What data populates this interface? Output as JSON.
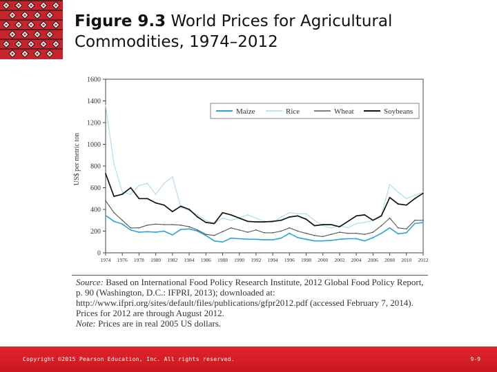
{
  "slide": {
    "title_bold": "Figure 9.3",
    "title_rest": " World Prices for Agricultural Commodities, 1974–2012",
    "source_label": "Source:",
    "source_text": " Based on International Food Policy Research Institute, 2012 Global Food Policy Report, p. 90 (Washington, D.C.: IFPRI, 2013); downloaded at: http://www.ifpri.org/sites/default/files/publications/gfpr2012.pdf (accessed February 7, 2014). Prices for 2012 are through August 2012.",
    "note_label": "Note:",
    "note_text": " Prices are in real 2005 US dollars.",
    "copyright": "Copyright ©2015 Pearson Education, Inc. All rights reserved.",
    "page_number": "9-9",
    "logo_colors": {
      "red": "#c8242b",
      "black": "#1a1a1a",
      "white": "#ffffff"
    },
    "footer_color": "#d41d25"
  },
  "chart_data": {
    "type": "line",
    "title": "",
    "xlabel": "",
    "ylabel": "US$ per metric ton",
    "xlim": [
      1974,
      2012
    ],
    "ylim": [
      0,
      1600
    ],
    "x_ticks": [
      1974,
      1976,
      1978,
      1980,
      1982,
      1984,
      1986,
      1988,
      1990,
      1992,
      1994,
      1996,
      1998,
      2000,
      2002,
      2004,
      2006,
      2008,
      2010,
      2012
    ],
    "y_ticks": [
      0,
      200,
      400,
      600,
      800,
      1000,
      1200,
      1400,
      1600
    ],
    "grid": false,
    "legend_position": "top-right",
    "x": [
      1974,
      1975,
      1976,
      1977,
      1978,
      1979,
      1980,
      1981,
      1982,
      1983,
      1984,
      1985,
      1986,
      1987,
      1988,
      1989,
      1990,
      1991,
      1992,
      1993,
      1994,
      1995,
      1996,
      1997,
      1998,
      1999,
      2000,
      2001,
      2002,
      2003,
      2004,
      2005,
      2006,
      2007,
      2008,
      2009,
      2010,
      2011,
      2012
    ],
    "series": [
      {
        "name": "Maize",
        "color": "#2aa3d6",
        "width": 1.6,
        "values": [
          345,
          290,
          265,
          210,
          190,
          195,
          190,
          200,
          165,
          215,
          220,
          200,
          160,
          110,
          100,
          135,
          130,
          125,
          125,
          120,
          120,
          135,
          180,
          140,
          125,
          110,
          110,
          115,
          125,
          130,
          130,
          110,
          140,
          180,
          230,
          175,
          185,
          270,
          280
        ]
      },
      {
        "name": "Rice",
        "color": "#a9dcec",
        "width": 1.1,
        "values": [
          1360,
          820,
          560,
          540,
          620,
          640,
          540,
          640,
          700,
          420,
          390,
          350,
          300,
          270,
          320,
          300,
          320,
          350,
          320,
          290,
          280,
          330,
          370,
          360,
          360,
          300,
          250,
          230,
          250,
          230,
          270,
          280,
          300,
          350,
          630,
          560,
          500,
          530,
          560
        ]
      },
      {
        "name": "Wheat",
        "color": "#555555",
        "width": 1.1,
        "values": [
          480,
          370,
          300,
          230,
          230,
          255,
          265,
          260,
          260,
          255,
          240,
          210,
          170,
          160,
          195,
          230,
          210,
          190,
          210,
          185,
          185,
          200,
          230,
          200,
          180,
          160,
          150,
          170,
          190,
          180,
          180,
          170,
          190,
          250,
          320,
          230,
          220,
          300,
          300
        ]
      },
      {
        "name": "Soybeans",
        "color": "#111111",
        "width": 1.7,
        "values": [
          730,
          520,
          540,
          600,
          500,
          500,
          460,
          440,
          380,
          430,
          400,
          330,
          280,
          270,
          370,
          350,
          320,
          290,
          285,
          285,
          290,
          300,
          330,
          340,
          310,
          250,
          260,
          260,
          240,
          290,
          340,
          350,
          300,
          340,
          510,
          450,
          440,
          500,
          550
        ]
      }
    ]
  }
}
